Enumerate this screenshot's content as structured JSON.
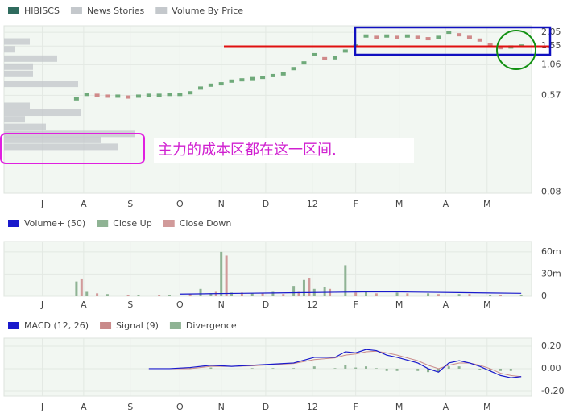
{
  "chart_data": [
    {
      "type": "price",
      "series": [
        {
          "name": "HIBISCS",
          "color": "#2f6b5e",
          "x": [
            7,
            8,
            9,
            10,
            11,
            12,
            13,
            14,
            15,
            16,
            17,
            18,
            19,
            20,
            21,
            22,
            23,
            24,
            25,
            26,
            27,
            28,
            29,
            30,
            31,
            32,
            33,
            34,
            35,
            36,
            37,
            38,
            39,
            40,
            41,
            42,
            43,
            44,
            45,
            46,
            47,
            48,
            49,
            50
          ],
          "values": [
            0.53,
            0.58,
            0.57,
            0.56,
            0.56,
            0.55,
            0.56,
            0.57,
            0.57,
            0.58,
            0.58,
            0.6,
            0.66,
            0.7,
            0.72,
            0.76,
            0.78,
            0.8,
            0.82,
            0.85,
            0.88,
            0.98,
            1.1,
            1.3,
            1.2,
            1.22,
            1.4,
            1.55,
            1.9,
            1.85,
            1.9,
            1.85,
            1.9,
            1.85,
            1.8,
            1.85,
            2.05,
            1.95,
            1.85,
            1.75,
            1.6,
            1.5,
            1.52,
            1.55
          ]
        },
        {
          "name": "News Stories",
          "color": "#c4c8cc"
        },
        {
          "name": "Volume By Price",
          "color": "#c4c8cc",
          "levels": [
            1.7,
            1.45,
            1.2,
            1.02,
            0.88,
            0.72,
            0.6,
            0.46,
            0.4,
            0.35,
            0.3,
            0.26,
            0.23,
            0.2
          ],
          "values": [
            32,
            14,
            66,
            36,
            36,
            92,
            0,
            32,
            96,
            26,
            52,
            162,
            120,
            142
          ]
        }
      ],
      "xlim": [
        0,
        51
      ],
      "xticks": [
        {
          "value": 3.7,
          "label": "J"
        },
        {
          "value": 7.7,
          "label": "A"
        },
        {
          "value": 12.2,
          "label": "S"
        },
        {
          "value": 17.0,
          "label": "O"
        },
        {
          "value": 21.0,
          "label": "N"
        },
        {
          "value": 25.3,
          "label": "D"
        },
        {
          "value": 29.8,
          "label": "12"
        },
        {
          "value": 34.0,
          "label": "F"
        },
        {
          "value": 38.2,
          "label": "M"
        },
        {
          "value": 42.7,
          "label": "A"
        },
        {
          "value": 46.7,
          "label": "M"
        }
      ],
      "ylim": [
        0.078,
        2.34
      ],
      "yticks": [
        0.08,
        0.57,
        1.06,
        1.55,
        2.05
      ],
      "log_scale": true,
      "grid": true,
      "annotation": "主力的成本区都在这一区间."
    },
    {
      "type": "bar",
      "series": [
        {
          "name": "Volume+ (50)",
          "color": "#1a1acc",
          "x": [
            17,
            20,
            23,
            26,
            29,
            32,
            35,
            38,
            41,
            44,
            47,
            50
          ],
          "values": [
            3,
            3.5,
            4,
            4.5,
            5,
            5.5,
            6,
            6,
            5.5,
            5,
            4.5,
            4
          ]
        },
        {
          "name": "Close Up",
          "color": "#8fb394",
          "x": [
            7,
            8,
            10,
            13,
            16,
            19,
            20,
            21,
            22,
            24,
            26,
            28,
            29,
            30,
            31,
            33,
            35,
            38,
            41,
            44,
            47,
            50
          ],
          "values": [
            20,
            6,
            3,
            2,
            2,
            10,
            4,
            60,
            5,
            4,
            6,
            14,
            22,
            10,
            12,
            42,
            6,
            5,
            4,
            3,
            2,
            2
          ]
        },
        {
          "name": "Close Down",
          "color": "#d19a9a",
          "x": [
            7.5,
            9,
            12,
            15,
            18,
            20.5,
            21.5,
            23,
            25,
            27,
            28.5,
            29.5,
            31.5,
            34,
            36,
            39,
            42,
            45,
            48
          ],
          "values": [
            24,
            4,
            2,
            2,
            3,
            6,
            55,
            5,
            4,
            3,
            6,
            25,
            10,
            5,
            4,
            4,
            3,
            3,
            2
          ]
        }
      ],
      "xlim": [
        0,
        51
      ],
      "xticks": [
        {
          "value": 3.7,
          "label": "J"
        },
        {
          "value": 7.7,
          "label": "A"
        },
        {
          "value": 12.2,
          "label": "S"
        },
        {
          "value": 17.0,
          "label": "O"
        },
        {
          "value": 21.0,
          "label": "N"
        },
        {
          "value": 25.3,
          "label": "D"
        },
        {
          "value": 29.8,
          "label": "12"
        },
        {
          "value": 34.0,
          "label": "F"
        },
        {
          "value": 38.2,
          "label": "M"
        },
        {
          "value": 42.7,
          "label": "A"
        },
        {
          "value": 46.7,
          "label": "M"
        }
      ],
      "ylim": [
        0,
        74
      ],
      "yticks": [
        0,
        {
          "value": 30,
          "label": "30m"
        },
        {
          "value": 60,
          "label": "60m"
        }
      ],
      "grid": true
    },
    {
      "type": "macd",
      "series": [
        {
          "name": "MACD (12, 26)",
          "color": "#1a1acc",
          "x": [
            14,
            16,
            18,
            20,
            22,
            24,
            26,
            28,
            30,
            32,
            33,
            34,
            35,
            36,
            37,
            38,
            40,
            41,
            42,
            43,
            44,
            45,
            46,
            47,
            48,
            49,
            50
          ],
          "values": [
            0,
            0,
            0.01,
            0.03,
            0.02,
            0.03,
            0.04,
            0.05,
            0.1,
            0.1,
            0.15,
            0.14,
            0.17,
            0.16,
            0.12,
            0.1,
            0.05,
            0,
            -0.03,
            0.05,
            0.07,
            0.05,
            0.02,
            -0.02,
            -0.06,
            -0.08,
            -0.07
          ]
        },
        {
          "name": "Signal (9)",
          "color": "#c98a8a",
          "x": [
            14,
            16,
            18,
            20,
            22,
            24,
            26,
            28,
            30,
            32,
            33,
            34,
            35,
            36,
            37,
            38,
            40,
            41,
            42,
            43,
            44,
            45,
            46,
            47,
            48,
            49,
            50
          ],
          "values": [
            0,
            0,
            0,
            0.02,
            0.02,
            0.025,
            0.035,
            0.045,
            0.08,
            0.095,
            0.12,
            0.13,
            0.15,
            0.155,
            0.14,
            0.12,
            0.07,
            0.03,
            0,
            0.03,
            0.05,
            0.05,
            0.03,
            0,
            -0.04,
            -0.06,
            -0.07
          ]
        },
        {
          "name": "Divergence",
          "color": "#8fb394",
          "x": [
            14,
            16,
            18,
            20,
            22,
            24,
            26,
            28,
            30,
            32,
            33,
            34,
            35,
            36,
            37,
            38,
            40,
            41,
            42,
            43,
            44,
            45,
            46,
            47,
            48,
            49,
            50
          ],
          "values": [
            0,
            0,
            0.01,
            0.01,
            0,
            0.005,
            0.005,
            0.005,
            0.02,
            0.005,
            0.03,
            0.01,
            0.02,
            0.005,
            -0.02,
            -0.02,
            -0.02,
            -0.03,
            -0.03,
            0.02,
            0.02,
            0,
            -0.01,
            -0.02,
            -0.02,
            -0.02,
            0
          ]
        }
      ],
      "xlim": [
        0,
        51
      ],
      "xticks": [
        {
          "value": 3.7,
          "label": "J"
        },
        {
          "value": 7.7,
          "label": "A"
        },
        {
          "value": 12.2,
          "label": "S"
        },
        {
          "value": 17.0,
          "label": "O"
        },
        {
          "value": 21.0,
          "label": "N"
        },
        {
          "value": 25.3,
          "label": "D"
        },
        {
          "value": 29.8,
          "label": "12"
        },
        {
          "value": 34.0,
          "label": "F"
        },
        {
          "value": 38.2,
          "label": "M"
        },
        {
          "value": 42.7,
          "label": "A"
        },
        {
          "value": 46.7,
          "label": "M"
        }
      ],
      "ylim": [
        -0.243,
        0.271
      ],
      "yticks": [
        {
          "value": -0.2,
          "label": "-0.20"
        },
        {
          "value": 0,
          "label": "0.00"
        },
        {
          "value": 0.2,
          "label": "0.20"
        }
      ],
      "grid": true
    }
  ]
}
